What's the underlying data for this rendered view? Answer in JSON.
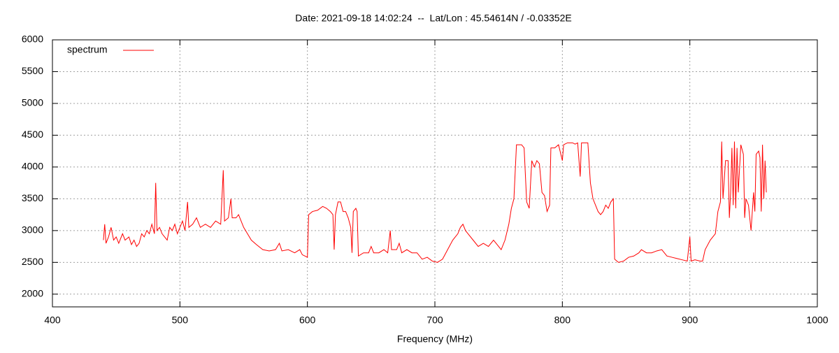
{
  "chart_data": {
    "type": "line",
    "title": "Date: 2021-09-18 14:02:24  --  Lat/Lon : 45.54614N / -0.03352E",
    "xlabel": "Frequency (MHz)",
    "x": [
      440,
      441,
      442,
      444,
      446,
      448,
      450,
      452,
      455,
      457,
      460,
      462,
      464,
      466,
      468,
      470,
      472,
      474,
      476,
      478,
      480,
      481,
      482,
      484,
      486,
      488,
      490,
      492,
      494,
      496,
      498,
      500,
      502,
      504,
      506,
      507,
      510,
      513,
      516,
      520,
      524,
      528,
      532,
      534,
      535,
      538,
      540,
      541,
      544,
      546,
      548,
      550,
      553,
      556,
      560,
      565,
      570,
      575,
      578,
      580,
      585,
      590,
      594,
      596,
      598,
      600,
      601,
      604,
      608,
      612,
      615,
      618,
      620,
      621,
      622,
      624,
      626,
      628,
      630,
      632,
      634,
      635,
      636,
      638,
      639,
      640,
      644,
      648,
      650,
      652,
      656,
      660,
      663,
      665,
      666,
      670,
      672,
      674,
      678,
      682,
      686,
      690,
      694,
      698,
      702,
      706,
      710,
      714,
      718,
      720,
      722,
      724,
      726,
      730,
      734,
      738,
      742,
      746,
      750,
      752,
      755,
      758,
      760,
      762,
      764,
      768,
      770,
      772,
      774,
      776,
      778,
      780,
      782,
      784,
      786,
      788,
      790,
      791,
      794,
      797,
      800,
      801,
      804,
      808,
      810,
      812,
      814,
      815,
      818,
      820,
      822,
      824,
      826,
      828,
      830,
      832,
      834,
      836,
      838,
      840,
      841,
      844,
      848,
      852,
      856,
      860,
      862,
      866,
      870,
      874,
      878,
      882,
      886,
      890,
      894,
      898,
      900,
      901,
      904,
      908,
      910,
      912,
      916,
      920,
      922,
      924,
      925,
      926,
      928,
      930,
      931,
      932,
      933,
      934,
      935,
      936,
      937,
      938,
      940,
      942,
      943,
      944,
      946,
      948,
      950,
      951,
      952,
      954,
      955,
      956,
      957,
      958,
      959,
      960
    ],
    "series": [
      {
        "name": "spectrum",
        "color": "#ff0000",
        "values": [
          2850,
          3100,
          2800,
          2900,
          3050,
          2850,
          2900,
          2800,
          2950,
          2850,
          2900,
          2780,
          2850,
          2750,
          2800,
          2950,
          2900,
          3000,
          2950,
          3100,
          2950,
          3750,
          3000,
          3050,
          2950,
          2900,
          2850,
          3050,
          3000,
          3100,
          2950,
          3050,
          3150,
          3000,
          3450,
          3050,
          3100,
          3200,
          3050,
          3100,
          3050,
          3150,
          3100,
          3950,
          3150,
          3200,
          3500,
          3200,
          3200,
          3250,
          3150,
          3050,
          2950,
          2850,
          2780,
          2700,
          2680,
          2700,
          2800,
          2680,
          2700,
          2650,
          2700,
          2620,
          2600,
          2580,
          3250,
          3300,
          3320,
          3380,
          3350,
          3300,
          3250,
          2700,
          3250,
          3450,
          3450,
          3300,
          3300,
          3200,
          3050,
          2650,
          3300,
          3350,
          3300,
          2600,
          2650,
          2650,
          2750,
          2650,
          2650,
          2700,
          2650,
          3000,
          2700,
          2700,
          2800,
          2650,
          2700,
          2650,
          2650,
          2550,
          2580,
          2520,
          2500,
          2550,
          2700,
          2850,
          2950,
          3050,
          3100,
          3000,
          2950,
          2850,
          2750,
          2800,
          2750,
          2850,
          2750,
          2700,
          2850,
          3100,
          3350,
          3500,
          4350,
          4350,
          4300,
          3450,
          3350,
          4100,
          4000,
          4100,
          4050,
          3600,
          3550,
          3300,
          3400,
          4300,
          4300,
          4350,
          4100,
          4350,
          4380,
          4380,
          4360,
          4380,
          3850,
          4380,
          4380,
          4380,
          3750,
          3500,
          3400,
          3300,
          3250,
          3300,
          3400,
          3350,
          3450,
          3500,
          2550,
          2500,
          2520,
          2580,
          2600,
          2650,
          2700,
          2650,
          2650,
          2680,
          2700,
          2600,
          2580,
          2560,
          2540,
          2520,
          2900,
          2520,
          2540,
          2520,
          2520,
          2700,
          2850,
          2950,
          3300,
          3450,
          4400,
          3500,
          4100,
          4100,
          3200,
          3600,
          4300,
          3400,
          4400,
          3350,
          4300,
          3600,
          4350,
          4200,
          3200,
          3500,
          3400,
          3000,
          3600,
          3300,
          4200,
          4250,
          4150,
          3300,
          4350,
          3500,
          4100,
          3600
        ]
      }
    ],
    "xlim": [
      400,
      1000
    ],
    "xticks": [
      400,
      500,
      600,
      700,
      800,
      900,
      1000
    ],
    "ylim": [
      1800,
      6000
    ],
    "yticks": [
      2000,
      2500,
      3000,
      3500,
      4000,
      4500,
      5000,
      5500,
      6000
    ],
    "grid": true,
    "legend": "top-left"
  }
}
